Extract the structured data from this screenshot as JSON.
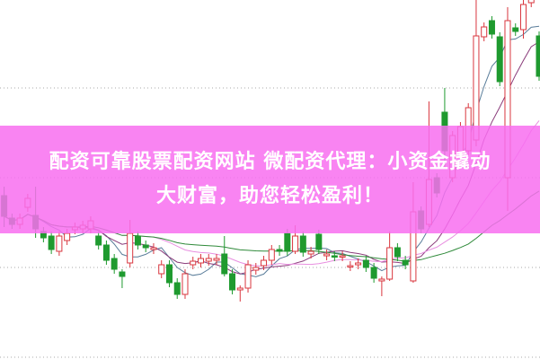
{
  "banner": {
    "line1": "配资可靠股票配资网站 微配资代理：小资金撬动",
    "line2": "大财富，助您轻松盈利！",
    "color": "#f86ef0"
  },
  "chart_data": {
    "type": "candlestick",
    "title": "",
    "xlabel": "",
    "ylabel": "",
    "grid": "horizontal dotted",
    "ylim": [
      0,
      40
    ],
    "gridlines": [
      10,
      20,
      30
    ],
    "up_color": "#d9363e",
    "down_color": "#1f9a2f",
    "ma_colors": [
      "#5a7d9a",
      "#8a3b7a",
      "#e88fe0",
      "#2f8a3a"
    ],
    "candles": [
      [
        18.0,
        15.7,
        19.0,
        14.5
      ],
      [
        15.5,
        14.8
      ],
      [
        14.8,
        15.5
      ],
      [
        16.7,
        17.7
      ],
      [
        15.8,
        14.3,
        19.0,
        13.3
      ],
      [
        14.0,
        13.3
      ],
      [
        13.5,
        12.0
      ],
      [
        11.8,
        13.5
      ],
      [
        13.0,
        13.8
      ],
      [
        14.2,
        14.5
      ],
      [
        14.3,
        14.7
      ],
      [
        14.3,
        15.2
      ],
      [
        13.5,
        12.5
      ],
      [
        12.5,
        10.8
      ],
      [
        11.0,
        9.8
      ],
      [
        9.5,
        9.0,
        9.8,
        7.7
      ],
      [
        10.5,
        13.8,
        15.3,
        10.0
      ],
      [
        13.5,
        12.5
      ],
      [
        12.5,
        12.2
      ],
      [
        12.0,
        12.2
      ],
      [
        9.3,
        10.3
      ],
      [
        10.3,
        8.3
      ],
      [
        8.3,
        7.0
      ],
      [
        7.0,
        9.3
      ],
      [
        10.3,
        10.7
      ],
      [
        10.5,
        11.0
      ],
      [
        10.7,
        11.0
      ],
      [
        10.8,
        11.0
      ],
      [
        11.5,
        9.3,
        13.5,
        9.0
      ],
      [
        9.3,
        7.5
      ],
      [
        7.5,
        7.7,
        8.0,
        6.2
      ],
      [
        7.7,
        10.3
      ],
      [
        9.7,
        10.0
      ],
      [
        10.2,
        10.8
      ],
      [
        10.8,
        12.0
      ],
      [
        12.0,
        11.8
      ],
      [
        13.8,
        11.8
      ],
      [
        11.8,
        13.5,
        14.7,
        11.5
      ],
      [
        13.5,
        11.7
      ],
      [
        11.5,
        11.8
      ],
      [
        13.7,
        12.0
      ],
      [
        11.3,
        11.5
      ],
      [
        11.3,
        11.2
      ],
      [
        11.2,
        11.3
      ],
      [
        10.1,
        10.2
      ],
      [
        10.3,
        10.5
      ],
      [
        10.8,
        10.0
      ],
      [
        10.0,
        8.8
      ],
      [
        8.5,
        8.7,
        9.0,
        6.8
      ],
      [
        8.7,
        12.2,
        14.0,
        8.5
      ],
      [
        12.2,
        11.2
      ],
      [
        10.8,
        10.3
      ],
      [
        8.5,
        16.2,
        19.5,
        8.3
      ],
      [
        16.3,
        14.3
      ],
      [
        14.8,
        19.8,
        28.5,
        14.5
      ],
      [
        20.0,
        18.3
      ],
      [
        27.3,
        23.0,
        30.0,
        21.0
      ],
      [
        20.0,
        24.7
      ],
      [
        22.3,
        25.7
      ],
      [
        23.0,
        27.8
      ],
      [
        24.2,
        35.8,
        40.0,
        23.5
      ],
      [
        35.7,
        36.8
      ],
      [
        37.5,
        36.0
      ],
      [
        35.7,
        30.7
      ],
      [
        20.0,
        37.5,
        39.0,
        16.3
      ],
      [
        36.7,
        36.3
      ],
      [
        36.5,
        39.3,
        40.0,
        35.5
      ],
      [
        39.5,
        40.0
      ],
      [
        35.8,
        31.3
      ]
    ]
  }
}
